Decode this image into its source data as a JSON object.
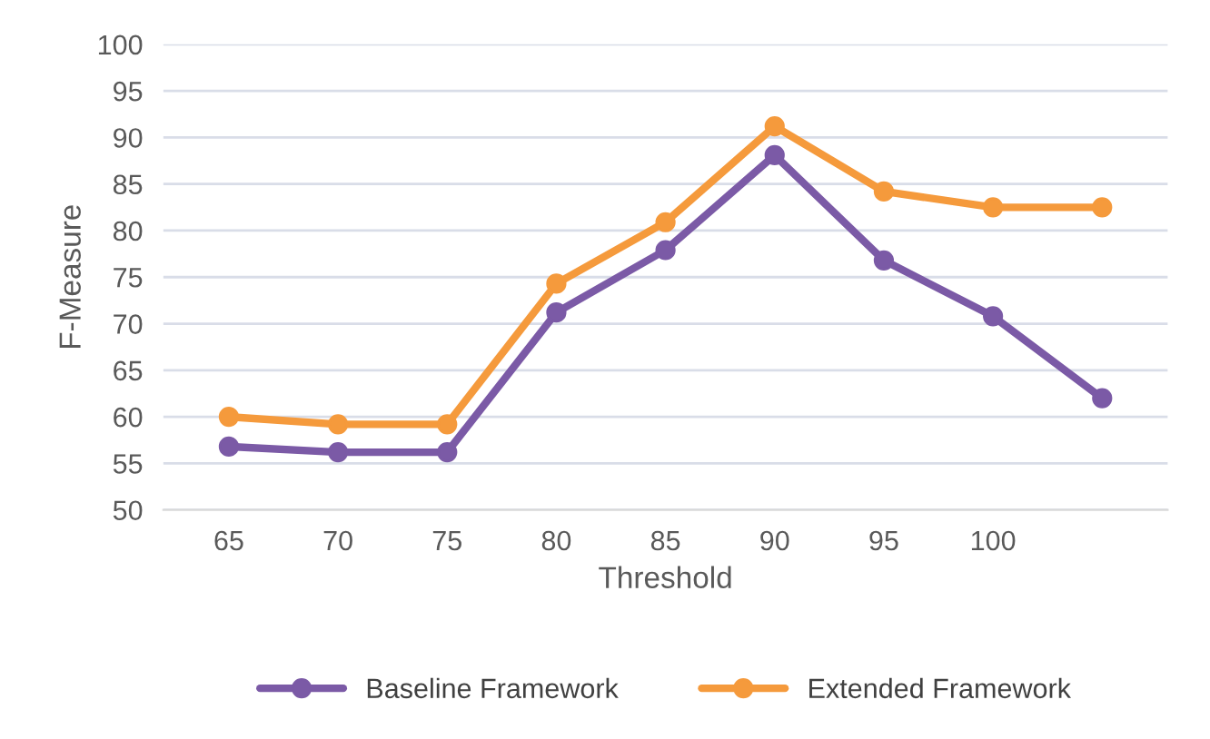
{
  "chart_data": {
    "type": "line",
    "xlabel": "Threshold",
    "ylabel": "F-Measure",
    "categories": [
      "65",
      "70",
      "75",
      "80",
      "85",
      "90",
      "95",
      "100",
      null
    ],
    "series": [
      {
        "name": "Baseline Framework",
        "color": "#7b5aa6",
        "values": [
          56.8,
          56.2,
          56.2,
          71.2,
          77.9,
          88.1,
          76.8,
          70.8,
          62.0
        ]
      },
      {
        "name": "Extended Framework",
        "color": "#f59a3c",
        "values": [
          60.0,
          59.2,
          59.2,
          74.3,
          80.9,
          91.2,
          84.2,
          82.5,
          82.5
        ]
      }
    ],
    "ylim": [
      50,
      100
    ],
    "yticks": [
      50,
      55,
      60,
      65,
      70,
      75,
      80,
      85,
      90,
      95,
      100
    ],
    "grid": "y",
    "legend": "bottom",
    "marker": "circle",
    "line_style": "solid"
  }
}
